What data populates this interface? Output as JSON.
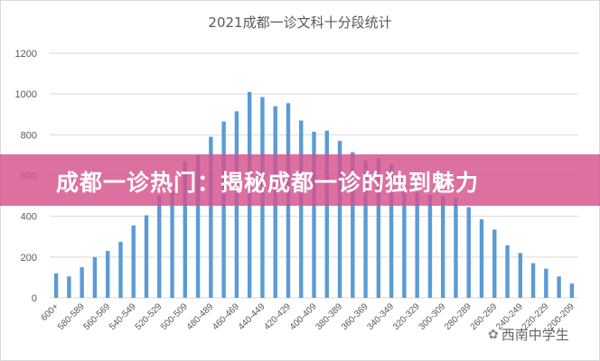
{
  "chart_data": {
    "type": "bar",
    "title": "2021成都一诊文科十分段统计",
    "xlabel": "",
    "ylabel": "",
    "ylim": [
      0,
      1200
    ],
    "y_ticks": [
      "0",
      "200",
      "400",
      "600",
      "800",
      "1000",
      "1200"
    ],
    "grid": true,
    "bar_color": "#5b9bd5",
    "tick_labels": [
      "600+",
      "580-589",
      "560-569",
      "540-549",
      "520-529",
      "500-509",
      "480-489",
      "460-469",
      "440-449",
      "420-429",
      "400-409",
      "380-389",
      "360-369",
      "340-349",
      "320-329",
      "300-309",
      "280-289",
      "260-269",
      "240-249",
      "220-229",
      "200-209"
    ],
    "values": [
      120,
      105,
      150,
      200,
      230,
      275,
      355,
      405,
      500,
      525,
      670,
      700,
      790,
      865,
      915,
      1010,
      985,
      940,
      955,
      870,
      815,
      820,
      770,
      715,
      675,
      685,
      655,
      525,
      515,
      505,
      500,
      490,
      445,
      385,
      335,
      258,
      220,
      170,
      143,
      105,
      70
    ]
  },
  "banner": {
    "text": "成都一诊热门：揭秘成都一诊的独到魅力",
    "color": "#d4508c"
  },
  "watermark": {
    "text": "西南中学生"
  }
}
